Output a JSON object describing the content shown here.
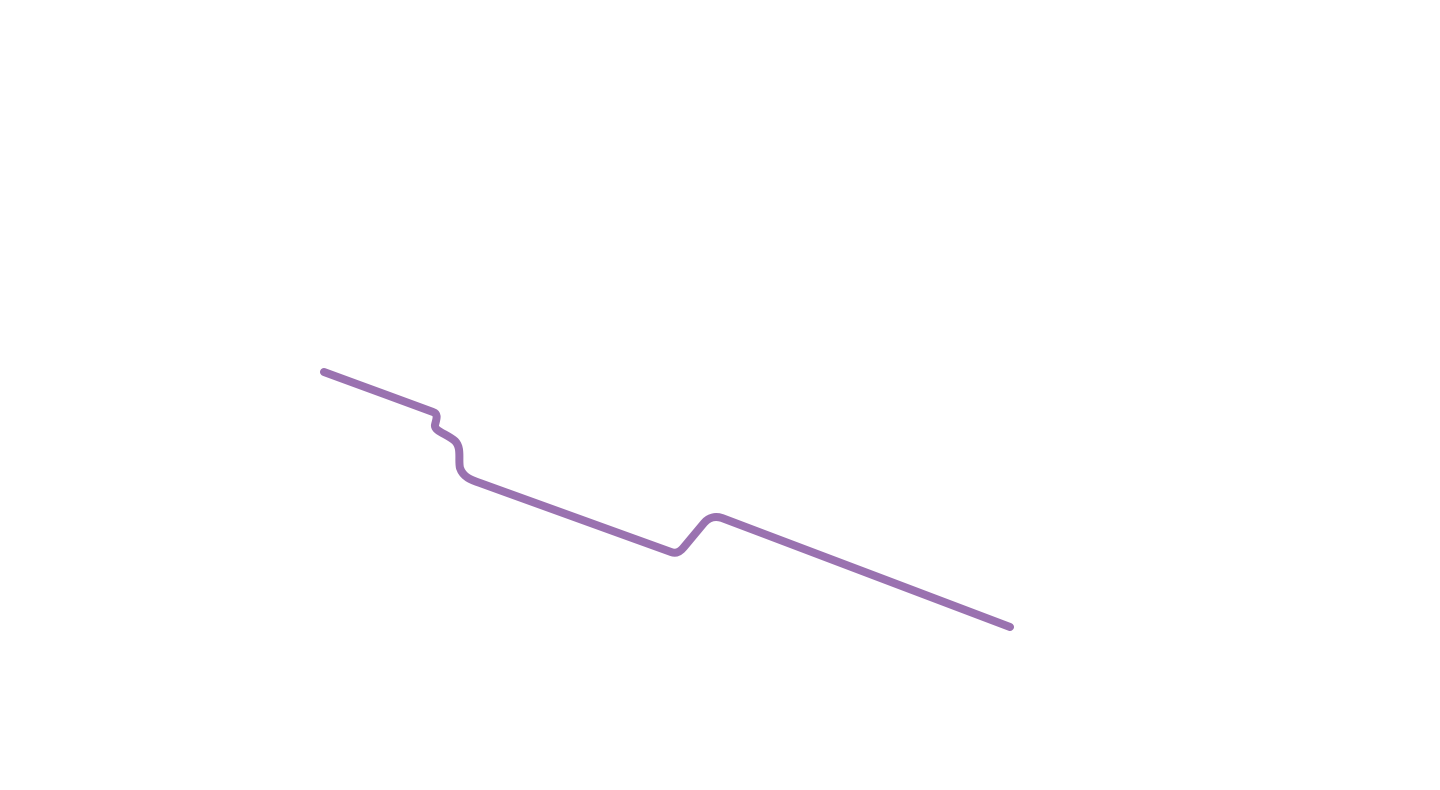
{
  "scene": {
    "background_color": "#ffffff",
    "path": {
      "name": "route-line",
      "color": "#9a72b0"
    }
  }
}
